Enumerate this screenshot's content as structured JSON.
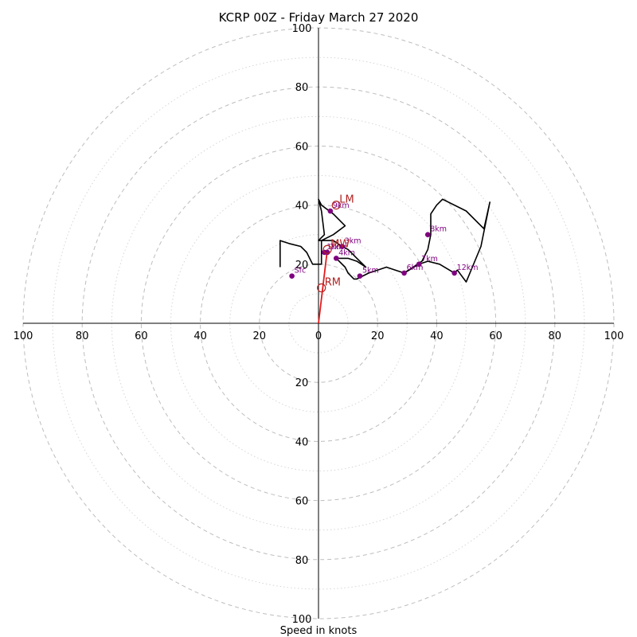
{
  "chart_data": {
    "type": "hodograph",
    "title": "KCRP 00Z - Friday March 27 2020",
    "xlabel": "Speed in knots",
    "rings": {
      "major": [
        20,
        40,
        60,
        80,
        100
      ],
      "minor": [
        10,
        30,
        50,
        70,
        90
      ]
    },
    "x_ticks": [
      100,
      80,
      60,
      40,
      20,
      0,
      20,
      40,
      60,
      80,
      100
    ],
    "y_ticks": [
      20,
      40,
      60,
      80,
      100
    ],
    "range": [
      -100,
      100
    ],
    "hodograph_path": [
      [
        -13,
        19
      ],
      [
        -13,
        21
      ],
      [
        -13,
        28
      ],
      [
        -10,
        27
      ],
      [
        -6,
        26
      ],
      [
        -4,
        24
      ],
      [
        -2,
        20
      ],
      [
        1,
        20
      ],
      [
        1,
        28
      ],
      [
        5,
        30
      ],
      [
        9,
        33
      ],
      [
        5,
        37
      ],
      [
        1,
        40
      ],
      [
        0,
        42
      ],
      [
        1,
        38
      ],
      [
        2,
        30
      ],
      [
        0,
        28
      ],
      [
        5,
        28
      ],
      [
        8,
        26
      ],
      [
        10,
        25
      ],
      [
        12,
        23
      ],
      [
        13,
        22
      ],
      [
        16,
        19
      ],
      [
        13,
        21
      ],
      [
        10,
        22
      ],
      [
        6,
        22
      ],
      [
        9,
        19
      ],
      [
        10,
        17
      ],
      [
        12,
        15
      ],
      [
        13,
        15
      ],
      [
        17,
        17
      ],
      [
        20,
        18
      ],
      [
        23,
        19
      ],
      [
        26,
        18
      ],
      [
        29,
        17
      ],
      [
        32,
        19
      ],
      [
        35,
        21
      ],
      [
        37,
        25
      ],
      [
        38,
        30
      ],
      [
        38,
        37
      ],
      [
        40,
        40
      ],
      [
        42,
        42
      ],
      [
        50,
        38
      ],
      [
        56,
        32
      ],
      [
        58,
        41
      ],
      [
        57,
        36
      ],
      [
        55,
        26
      ],
      [
        50,
        14
      ],
      [
        47,
        18
      ],
      [
        46,
        17
      ],
      [
        41,
        20
      ],
      [
        37,
        21
      ],
      [
        34,
        20
      ],
      [
        29,
        17
      ]
    ],
    "height_points": [
      {
        "label": "Sfc",
        "u": -9,
        "v": 16
      },
      {
        "label": "1km",
        "u": 2,
        "v": 24
      },
      {
        "label": "2km",
        "u": 3,
        "v": 24
      },
      {
        "label": "3km",
        "u": 8,
        "v": 26
      },
      {
        "label": "4km",
        "u": 6,
        "v": 22
      },
      {
        "label": "5km",
        "u": 14,
        "v": 16
      },
      {
        "label": "6km",
        "u": 29,
        "v": 17
      },
      {
        "label": "7km",
        "u": 34,
        "v": 20
      },
      {
        "label": "8km",
        "u": 37,
        "v": 30
      },
      {
        "label": "9km",
        "u": 4,
        "v": 38
      },
      {
        "label": "12km",
        "u": 46,
        "v": 17
      }
    ],
    "motion_markers": [
      {
        "label": "LM",
        "u": 6,
        "v": 40
      },
      {
        "label": "MW",
        "u": 3,
        "v": 25
      },
      {
        "label": "RM",
        "u": 1,
        "v": 12
      }
    ],
    "storm_motion_vector": {
      "u": 3,
      "v": 25
    },
    "colors": {
      "hodograph": "#000000",
      "height_points": "#800080",
      "motion": "#b22222",
      "storm_vector": "#e31a1c",
      "ring_major": "#bdbdbd",
      "ring_minor": "#d6d6d6"
    }
  }
}
